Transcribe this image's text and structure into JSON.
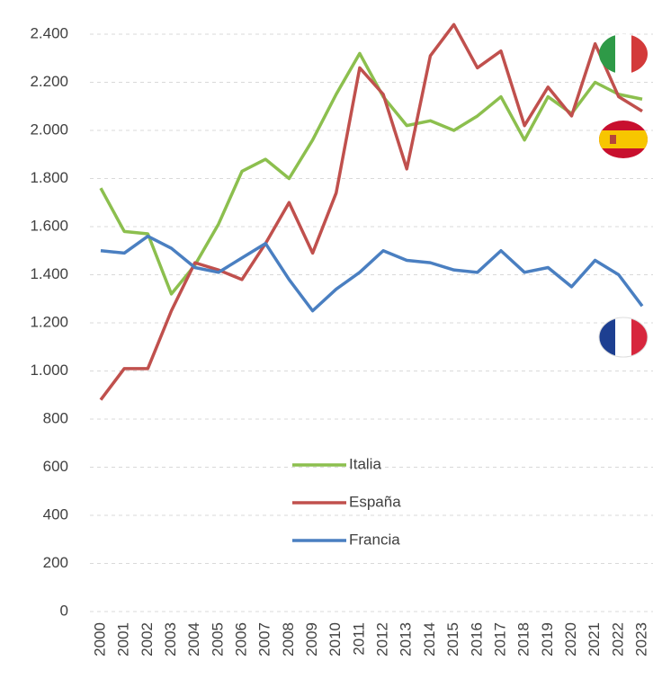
{
  "chart_data": {
    "type": "line",
    "categories": [
      "2000",
      "2001",
      "2002",
      "2003",
      "2004",
      "2005",
      "2006",
      "2007",
      "2008",
      "2009",
      "2010",
      "2011",
      "2012",
      "2013",
      "2014",
      "2015",
      "2016",
      "2017",
      "2018",
      "2019",
      "2020",
      "2021",
      "2022",
      "2023"
    ],
    "series": [
      {
        "name": "Italia",
        "color": "#8cbf4e",
        "values": [
          1760,
          1580,
          1570,
          1320,
          1440,
          1610,
          1830,
          1880,
          1800,
          1960,
          2150,
          2320,
          2140,
          2020,
          2040,
          2000,
          2060,
          2140,
          1960,
          2140,
          2070,
          2200,
          2150,
          2130
        ]
      },
      {
        "name": "España",
        "color": "#c0504d",
        "values": [
          880,
          1010,
          1010,
          1250,
          1450,
          1420,
          1380,
          1530,
          1700,
          1490,
          1740,
          2260,
          2150,
          1840,
          2310,
          2440,
          2260,
          2330,
          2020,
          2180,
          2060,
          2360,
          2140,
          2080
        ]
      },
      {
        "name": "Francia",
        "color": "#4a7fc1",
        "values": [
          1500,
          1490,
          1560,
          1510,
          1430,
          1410,
          1470,
          1530,
          1380,
          1250,
          1340,
          1410,
          1500,
          1460,
          1450,
          1420,
          1410,
          1500,
          1410,
          1430,
          1350,
          1460,
          1400,
          1270
        ]
      }
    ],
    "ylim": [
      0,
      2400
    ],
    "yticks": [
      0,
      200,
      400,
      600,
      800,
      {
        "value": 1000,
        "label": "1.000"
      },
      {
        "value": 1200,
        "label": "1.200"
      },
      {
        "value": 1400,
        "label": "1.400"
      },
      {
        "value": 1600,
        "label": "1.600"
      },
      {
        "value": 1800,
        "label": "1.800"
      },
      {
        "value": 2000,
        "label": "2.000"
      },
      {
        "value": 2200,
        "label": "2.200"
      },
      {
        "value": 2400,
        "label": "2.400"
      }
    ],
    "grid": true
  }
}
